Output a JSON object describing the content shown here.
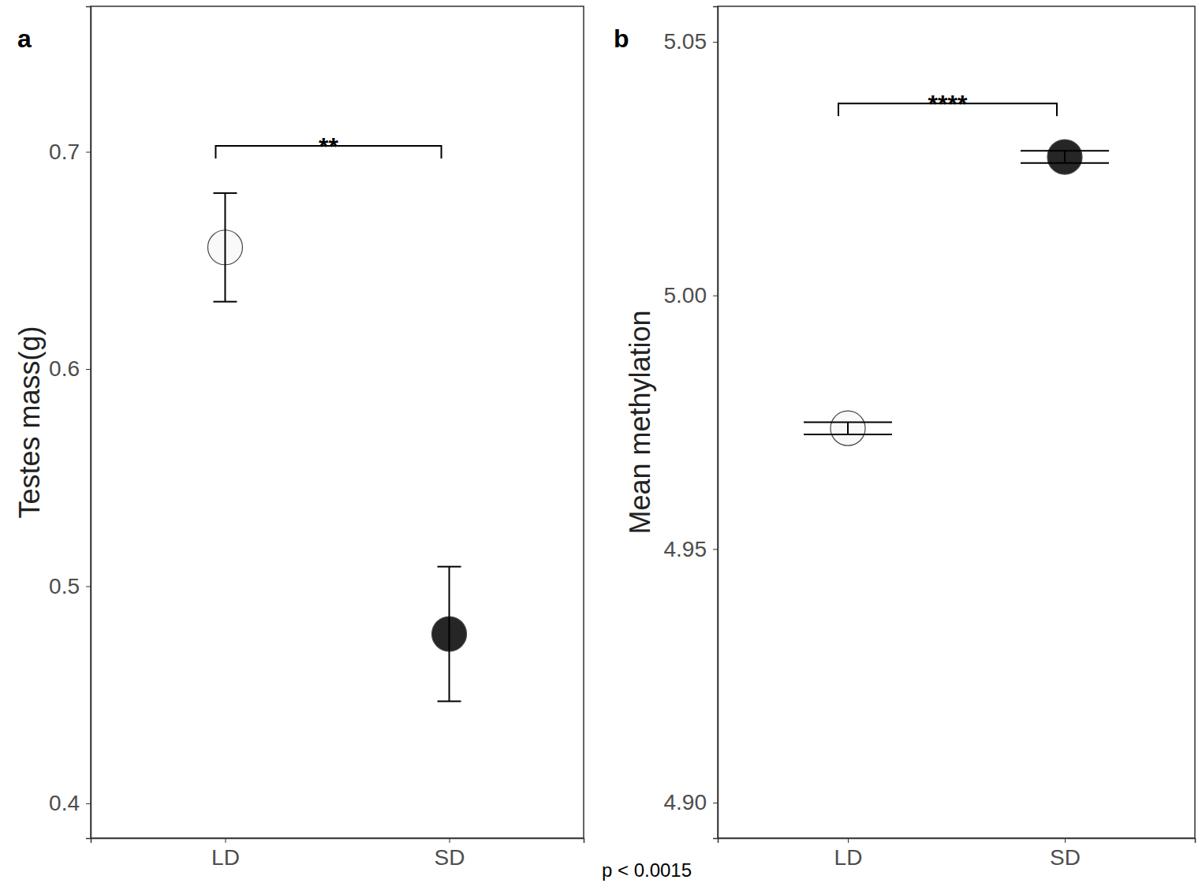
{
  "chart_data": [
    {
      "type": "point",
      "panel_label": "a",
      "y_label": "Testes mass(g)",
      "categories": [
        "LD",
        "SD"
      ],
      "values": [
        0.656,
        0.478
      ],
      "errors": [
        0.025,
        0.031
      ],
      "colors": [
        "#f9f9f9",
        "#262626"
      ],
      "ylim": [
        0.384,
        0.767
      ],
      "yticks": [
        0.4,
        0.5,
        0.6,
        0.7
      ],
      "significance": "**"
    },
    {
      "type": "point",
      "panel_label": "b",
      "y_label": "Mean methylation",
      "categories": [
        "LD",
        "SD"
      ],
      "values": [
        4.9738,
        5.0273
      ],
      "errors": [
        0.0012,
        0.0012
      ],
      "colors": [
        "#f9f9f9",
        "#262626"
      ],
      "ylim": [
        4.893,
        5.057
      ],
      "yticks": [
        {
          "value": 4.9,
          "label": "4.90"
        },
        4.95,
        {
          "value": 5,
          "label": "5.00"
        },
        5.05
      ],
      "significance": "****"
    }
  ],
  "caption": "p < 0.0015"
}
